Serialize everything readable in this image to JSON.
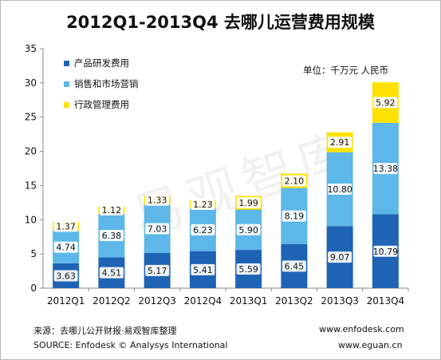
{
  "page": {
    "title": "2012Q1-2013Q4  去哪儿运营费用规模",
    "unit": "单位：千万元 人民币",
    "watermark": "易观智库",
    "source_cn": "来源：去哪儿公开财报·易观智库整理",
    "source_en": "SOURCE: Enfodesk © Analysys International",
    "site1": "www.enfodesk.com",
    "site2": "www.eguan.cn"
  },
  "colors": {
    "rd": "#1f63b5",
    "sales": "#5db7e8",
    "admin": "#ffe100"
  },
  "chart_data": {
    "type": "bar",
    "stacked": true,
    "categories": [
      "2012Q1",
      "2012Q2",
      "2012Q3",
      "2012Q4",
      "2013Q1",
      "2013Q2",
      "2013Q3",
      "2013Q4"
    ],
    "series": [
      {
        "name": "产品研发费用",
        "values": [
          3.63,
          4.51,
          5.17,
          5.41,
          5.59,
          6.45,
          9.07,
          10.79
        ],
        "labels": [
          "3.63",
          "4.51",
          "5.17",
          "5.41",
          "5.59",
          "6.45",
          "9.07",
          "10.79"
        ]
      },
      {
        "name": "销售和市场营销",
        "values": [
          4.74,
          6.38,
          7.03,
          6.23,
          5.9,
          8.19,
          10.8,
          13.38
        ],
        "labels": [
          "4.74",
          "6.38",
          "7.03",
          "6.23",
          "5.90",
          "8.19",
          "10.80",
          "13.38"
        ]
      },
      {
        "name": "行政管理费用",
        "values": [
          1.37,
          1.12,
          1.33,
          1.23,
          1.99,
          2.1,
          2.91,
          5.92
        ],
        "labels": [
          "1.37",
          "1.12",
          "1.33",
          "1.23",
          "1.99",
          "2.10",
          "2.91",
          "5.92"
        ]
      }
    ],
    "yticks": [
      "0",
      "5",
      "10",
      "15",
      "20",
      "25",
      "30",
      "35"
    ],
    "ylim": [
      0,
      35
    ],
    "grid": false,
    "legend": "top-left"
  }
}
